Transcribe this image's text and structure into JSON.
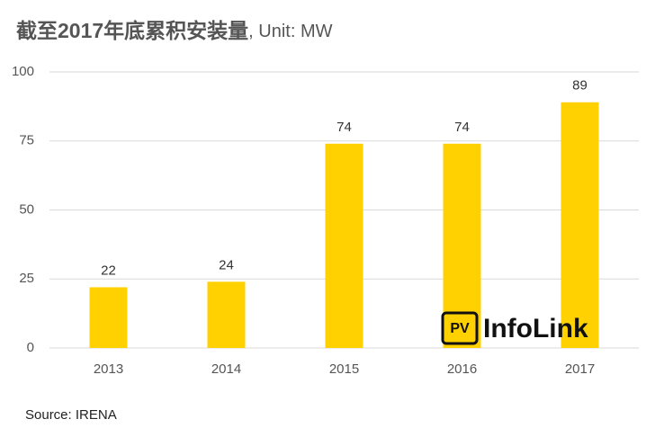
{
  "chart_data": {
    "type": "bar",
    "title": "截至2017年底累积安装量",
    "unit_label": ", Unit: MW",
    "categories": [
      "2013",
      "2014",
      "2015",
      "2016",
      "2017"
    ],
    "values": [
      22,
      24,
      74,
      74,
      89
    ],
    "color": "#ffd100",
    "ylim": [
      0,
      100
    ],
    "yticks": [
      0,
      25,
      50,
      75,
      100
    ],
    "grid": true,
    "source": "Source: IRENA",
    "watermark": {
      "badge": "PV",
      "text": "InfoLink"
    }
  }
}
